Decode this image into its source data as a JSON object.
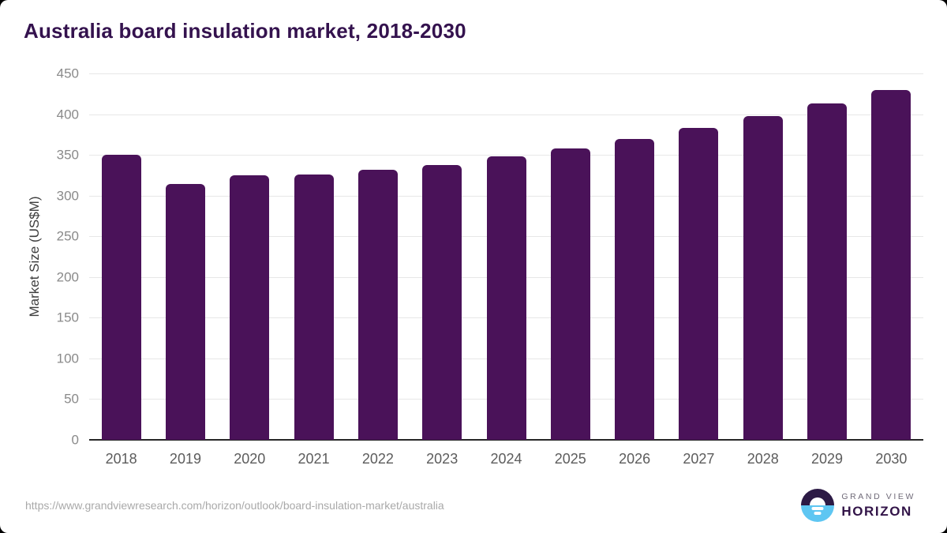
{
  "title": "Australia board insulation market, 2018-2030",
  "chart_data": {
    "type": "bar",
    "title": "Australia board insulation market, 2018-2030",
    "categories": [
      "2018",
      "2019",
      "2020",
      "2021",
      "2022",
      "2023",
      "2024",
      "2025",
      "2026",
      "2027",
      "2028",
      "2029",
      "2030"
    ],
    "values": [
      350,
      314,
      325,
      326,
      332,
      338,
      348,
      358,
      370,
      383,
      398,
      413,
      430
    ],
    "xlabel": "",
    "ylabel": "Market Size (US$M)",
    "ylim": [
      0,
      450
    ],
    "yticks": [
      0,
      50,
      100,
      150,
      200,
      250,
      300,
      350,
      400,
      450
    ],
    "grid": true,
    "legend": "none",
    "bar_color": "#4a1259"
  },
  "colors": {
    "title": "#34124e",
    "bar": "#4a1259",
    "gridline": "#e7e7e7",
    "axis_line": "#262626",
    "logo_blue": "#5ec6f2",
    "logo_dark": "#2c1a45"
  },
  "footer": {
    "source_url": "https://www.grandviewresearch.com/horizon/outlook/board-insulation-market/australia",
    "logo_line1": "GRAND VIEW",
    "logo_line2": "HORIZON"
  }
}
